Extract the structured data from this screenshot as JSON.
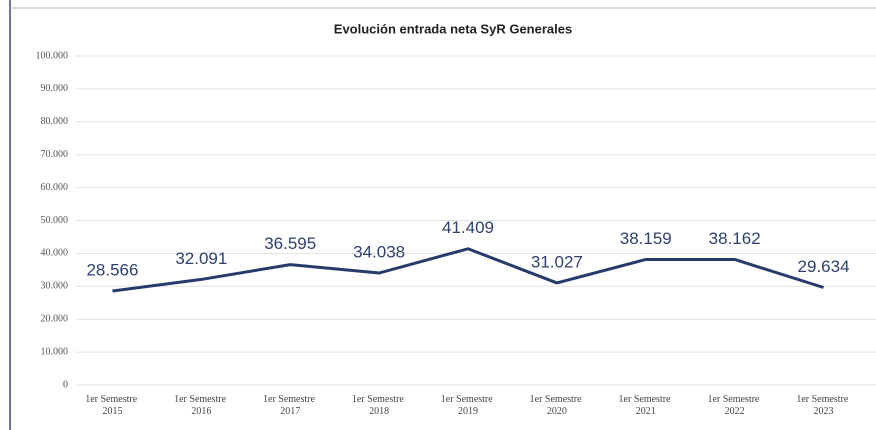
{
  "chart_data": {
    "type": "line",
    "title": "Evolución entrada neta SyR Generales",
    "categories": [
      "1er Semestre 2015",
      "1er Semestre 2016",
      "1er Semestre 2017",
      "1er Semestre 2018",
      "1er Semestre 2019",
      "1er Semestre 2020",
      "1er Semestre 2021",
      "1er Semestre 2022",
      "1er Semestre 2023"
    ],
    "values": [
      28566,
      32091,
      36595,
      34038,
      41409,
      31027,
      38159,
      38162,
      29634
    ],
    "value_labels": [
      "28.566",
      "32.091",
      "36.595",
      "34.038",
      "41.409",
      "31.027",
      "38.159",
      "38.162",
      "29.634"
    ],
    "color": "#263b6b",
    "ylim": [
      0,
      100000
    ],
    "yticks": [
      0,
      {
        "value": 10000,
        "label": "10.000"
      },
      {
        "value": 20000,
        "label": "20.000"
      },
      {
        "value": 30000,
        "label": "30.000"
      },
      {
        "value": 40000,
        "label": "40.000"
      },
      {
        "value": 50000,
        "label": "50.000"
      },
      {
        "value": 60000,
        "label": "60.000"
      },
      {
        "value": 70000,
        "label": "70.000"
      },
      {
        "value": 80000,
        "label": "80.000"
      },
      {
        "value": 90000,
        "label": "90.000"
      },
      {
        "value": 100000,
        "label": "100.000"
      }
    ],
    "grid": true
  }
}
